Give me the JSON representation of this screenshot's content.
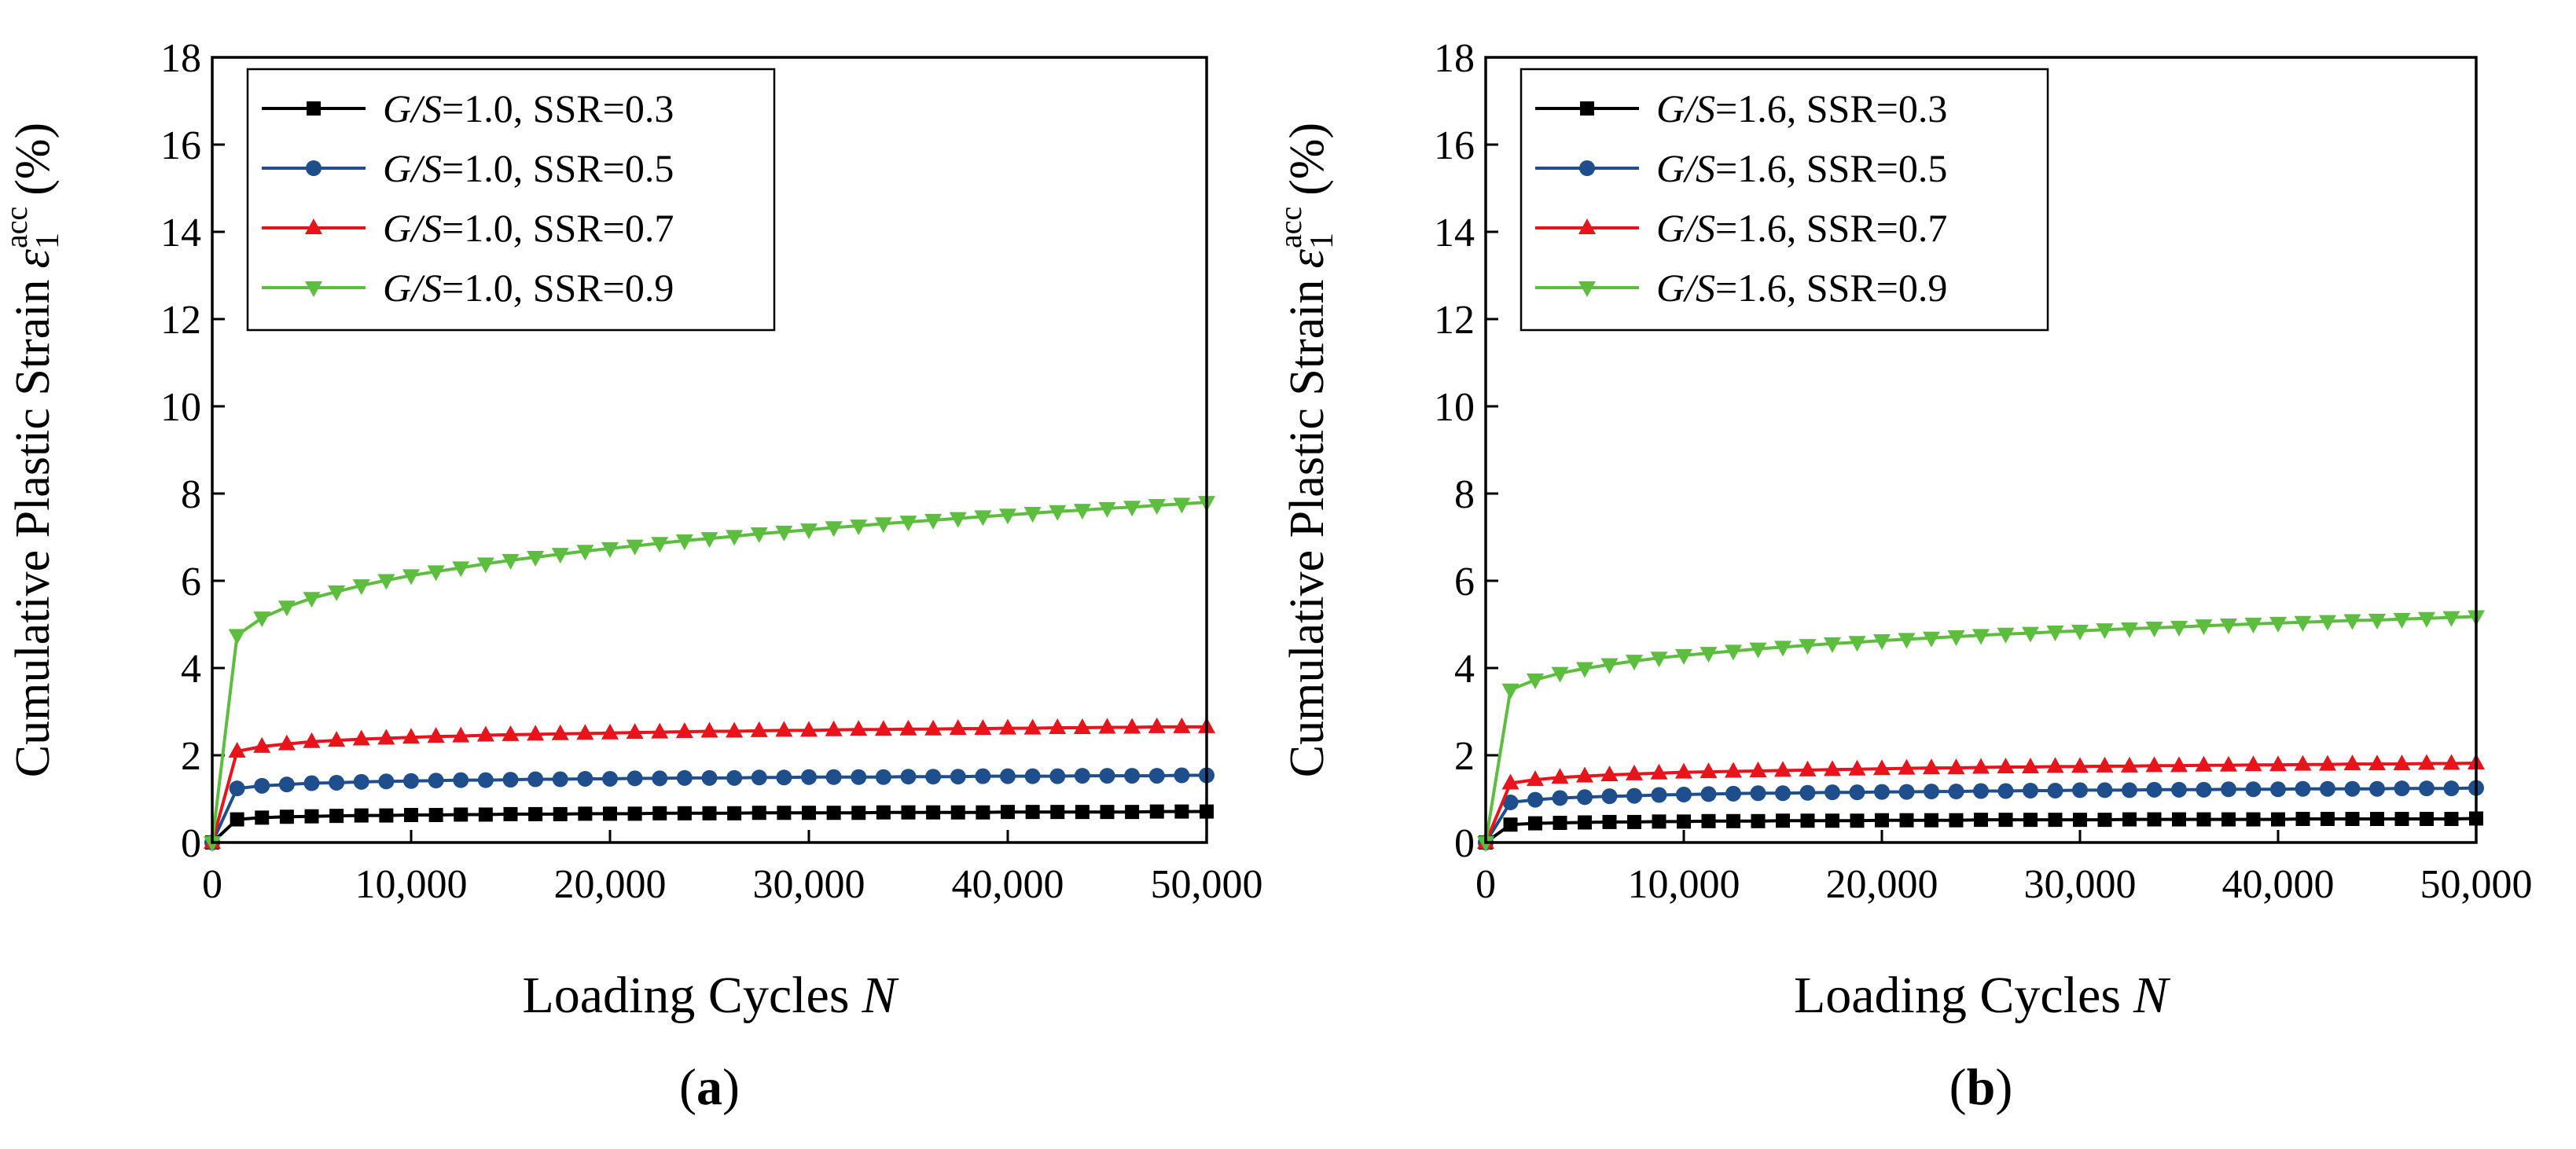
{
  "chart_data": [
    {
      "type": "line",
      "panel_label": "a",
      "xlabel": "Loading Cycles",
      "xlabel_var": "N",
      "ylabel": "Cumulative Plastic Strain",
      "ylabel_symbol": "ε",
      "ylabel_sub": "1",
      "ylabel_sup": "acc",
      "ylabel_unit": "(%)",
      "xlim": [
        0,
        50000
      ],
      "ylim": [
        0,
        18
      ],
      "xticks": [
        "0",
        "10,000",
        "20,000",
        "30,000",
        "40,000",
        "50,000"
      ],
      "yticks": [
        "0",
        "2",
        "4",
        "6",
        "8",
        "10",
        "12",
        "14",
        "16",
        "18"
      ],
      "legend_position": "top-left",
      "grid": false,
      "x": [
        0,
        1250,
        2500,
        3750,
        5000,
        6250,
        7500,
        8750,
        10000,
        11250,
        12500,
        13750,
        15000,
        16250,
        17500,
        18750,
        20000,
        21250,
        22500,
        23750,
        25000,
        26250,
        27500,
        28750,
        30000,
        31250,
        32500,
        33750,
        35000,
        36250,
        37500,
        38750,
        40000,
        41250,
        42500,
        43750,
        45000,
        46250,
        47500,
        48750,
        50000
      ],
      "series": [
        {
          "name_var": "G/S",
          "name_rest": "=1.0, SSR=0.3",
          "color": "#000000",
          "marker": "square",
          "values": [
            0,
            0.53,
            0.57,
            0.59,
            0.6,
            0.61,
            0.62,
            0.62,
            0.63,
            0.63,
            0.64,
            0.64,
            0.65,
            0.65,
            0.65,
            0.66,
            0.66,
            0.66,
            0.67,
            0.67,
            0.67,
            0.67,
            0.68,
            0.68,
            0.68,
            0.68,
            0.68,
            0.69,
            0.69,
            0.69,
            0.69,
            0.69,
            0.7,
            0.7,
            0.7,
            0.7,
            0.7,
            0.7,
            0.71,
            0.71,
            0.71
          ]
        },
        {
          "name_var": "G/S",
          "name_rest": "=1.0, SSR=0.5",
          "color": "#1f4e8c",
          "marker": "circle",
          "values": [
            0,
            1.24,
            1.3,
            1.33,
            1.36,
            1.37,
            1.39,
            1.4,
            1.41,
            1.42,
            1.43,
            1.43,
            1.44,
            1.45,
            1.45,
            1.46,
            1.46,
            1.47,
            1.47,
            1.48,
            1.48,
            1.48,
            1.49,
            1.49,
            1.5,
            1.5,
            1.5,
            1.5,
            1.51,
            1.51,
            1.51,
            1.52,
            1.52,
            1.52,
            1.52,
            1.53,
            1.53,
            1.53,
            1.53,
            1.54,
            1.54
          ]
        },
        {
          "name_var": "G/S",
          "name_rest": "=1.0, SSR=0.7",
          "color": "#e8131b",
          "marker": "triangle-up",
          "values": [
            0,
            2.09,
            2.2,
            2.26,
            2.31,
            2.34,
            2.37,
            2.39,
            2.41,
            2.43,
            2.44,
            2.46,
            2.47,
            2.48,
            2.49,
            2.5,
            2.51,
            2.52,
            2.53,
            2.54,
            2.55,
            2.55,
            2.56,
            2.57,
            2.57,
            2.58,
            2.59,
            2.59,
            2.6,
            2.6,
            2.61,
            2.61,
            2.62,
            2.62,
            2.63,
            2.63,
            2.64,
            2.64,
            2.65,
            2.65,
            2.65
          ]
        },
        {
          "name_var": "G/S",
          "name_rest": "=1.0, SSR=0.9",
          "color": "#5cbd3f",
          "marker": "triangle-down",
          "values": [
            0,
            4.75,
            5.15,
            5.4,
            5.6,
            5.75,
            5.89,
            6.01,
            6.12,
            6.21,
            6.3,
            6.39,
            6.47,
            6.54,
            6.61,
            6.68,
            6.74,
            6.8,
            6.86,
            6.92,
            6.97,
            7.02,
            7.08,
            7.12,
            7.17,
            7.22,
            7.26,
            7.31,
            7.35,
            7.39,
            7.43,
            7.47,
            7.51,
            7.55,
            7.59,
            7.62,
            7.66,
            7.69,
            7.73,
            7.76,
            7.8
          ]
        }
      ]
    },
    {
      "type": "line",
      "panel_label": "b",
      "xlabel": "Loading Cycles",
      "xlabel_var": "N",
      "ylabel": "Cumulative Plastic Strain",
      "ylabel_symbol": "ε",
      "ylabel_sub": "1",
      "ylabel_sup": "acc",
      "ylabel_unit": "(%)",
      "xlim": [
        0,
        50000
      ],
      "ylim": [
        0,
        18
      ],
      "xticks": [
        "0",
        "10,000",
        "20,000",
        "30,000",
        "40,000",
        "50,000"
      ],
      "yticks": [
        "0",
        "2",
        "4",
        "6",
        "8",
        "10",
        "12",
        "14",
        "16",
        "18"
      ],
      "legend_position": "top-left",
      "grid": false,
      "x": [
        0,
        1250,
        2500,
        3750,
        5000,
        6250,
        7500,
        8750,
        10000,
        11250,
        12500,
        13750,
        15000,
        16250,
        17500,
        18750,
        20000,
        21250,
        22500,
        23750,
        25000,
        26250,
        27500,
        28750,
        30000,
        31250,
        32500,
        33750,
        35000,
        36250,
        37500,
        38750,
        40000,
        41250,
        42500,
        43750,
        45000,
        46250,
        47500,
        48750,
        50000
      ],
      "series": [
        {
          "name_var": "G/S",
          "name_rest": "=1.6, SSR=0.3",
          "color": "#000000",
          "marker": "square",
          "values": [
            0,
            0.41,
            0.44,
            0.45,
            0.46,
            0.47,
            0.47,
            0.48,
            0.48,
            0.49,
            0.49,
            0.49,
            0.5,
            0.5,
            0.5,
            0.5,
            0.51,
            0.51,
            0.51,
            0.51,
            0.52,
            0.52,
            0.52,
            0.52,
            0.52,
            0.52,
            0.53,
            0.53,
            0.53,
            0.53,
            0.53,
            0.53,
            0.53,
            0.54,
            0.54,
            0.54,
            0.54,
            0.54,
            0.54,
            0.54,
            0.55
          ]
        },
        {
          "name_var": "G/S",
          "name_rest": "=1.6, SSR=0.5",
          "color": "#1f4e8c",
          "marker": "circle",
          "values": [
            0,
            0.92,
            0.98,
            1.02,
            1.04,
            1.06,
            1.07,
            1.09,
            1.1,
            1.11,
            1.12,
            1.13,
            1.13,
            1.14,
            1.15,
            1.15,
            1.16,
            1.16,
            1.17,
            1.17,
            1.18,
            1.18,
            1.19,
            1.19,
            1.2,
            1.2,
            1.2,
            1.21,
            1.21,
            1.21,
            1.22,
            1.22,
            1.22,
            1.23,
            1.23,
            1.23,
            1.23,
            1.24,
            1.24,
            1.24,
            1.25
          ]
        },
        {
          "name_var": "G/S",
          "name_rest": "=1.6, SSR=0.7",
          "color": "#e8131b",
          "marker": "triangle-up",
          "values": [
            0,
            1.36,
            1.44,
            1.49,
            1.52,
            1.55,
            1.57,
            1.59,
            1.61,
            1.62,
            1.63,
            1.64,
            1.65,
            1.66,
            1.67,
            1.68,
            1.69,
            1.7,
            1.71,
            1.71,
            1.72,
            1.73,
            1.73,
            1.74,
            1.74,
            1.75,
            1.75,
            1.76,
            1.76,
            1.77,
            1.77,
            1.78,
            1.78,
            1.79,
            1.79,
            1.8,
            1.8,
            1.8,
            1.81,
            1.81,
            1.82
          ]
        },
        {
          "name_var": "G/S",
          "name_rest": "=1.6, SSR=0.9",
          "color": "#5cbd3f",
          "marker": "triangle-down",
          "values": [
            0,
            3.5,
            3.73,
            3.88,
            3.99,
            4.08,
            4.16,
            4.23,
            4.29,
            4.34,
            4.39,
            4.44,
            4.48,
            4.52,
            4.56,
            4.59,
            4.63,
            4.66,
            4.69,
            4.72,
            4.75,
            4.78,
            4.8,
            4.83,
            4.85,
            4.88,
            4.9,
            4.92,
            4.94,
            4.97,
            4.99,
            5.01,
            5.03,
            5.05,
            5.07,
            5.09,
            5.1,
            5.12,
            5.14,
            5.16,
            5.18
          ]
        }
      ]
    }
  ]
}
